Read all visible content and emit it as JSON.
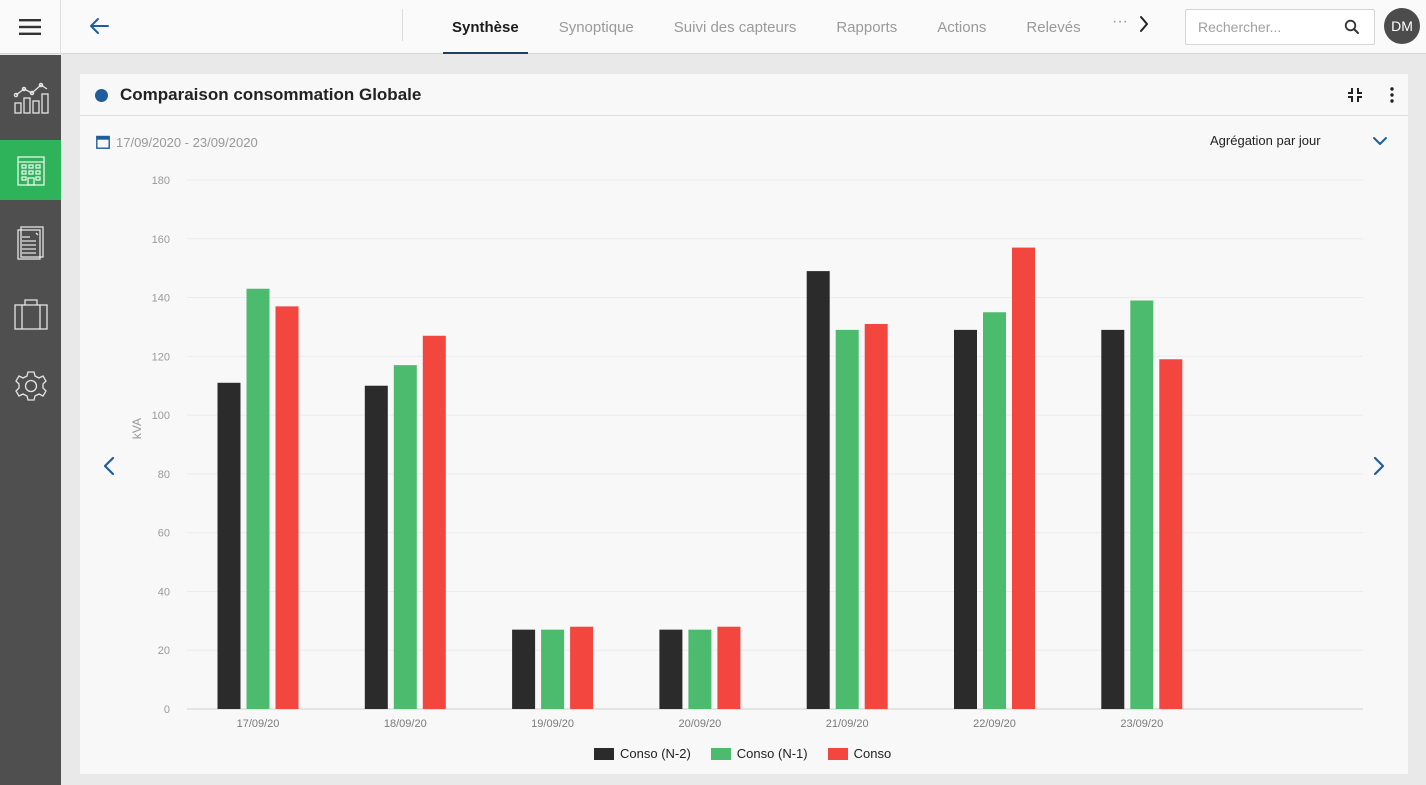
{
  "topbar": {
    "tabs": [
      {
        "label": "Synthèse",
        "active": true
      },
      {
        "label": "Synoptique",
        "active": false
      },
      {
        "label": "Suivi des capteurs",
        "active": false
      },
      {
        "label": "Rapports",
        "active": false
      },
      {
        "label": "Actions",
        "active": false
      },
      {
        "label": "Relevés",
        "active": false
      }
    ],
    "more": "···",
    "search_placeholder": "Rechercher...",
    "avatar_initials": "DM"
  },
  "sidebar": {
    "items": [
      {
        "icon": "chart-icon",
        "active": false
      },
      {
        "icon": "building-icon",
        "active": true
      },
      {
        "icon": "invoice-icon",
        "active": false
      },
      {
        "icon": "briefcase-icon",
        "active": false
      },
      {
        "icon": "gear-icon",
        "active": false
      }
    ]
  },
  "card": {
    "title": "Comparaison consommation Globale",
    "date_range": "17/09/2020 - 23/09/2020",
    "aggregation": "Agrégation par jour"
  },
  "colors": {
    "accent_green": "#2eb25a",
    "title_dot": "#1f5d9c",
    "series_n2": "#2b2b2b",
    "series_n1": "#4cbb6e",
    "series_conso": "#f2463f"
  },
  "chart_data": {
    "type": "bar",
    "ylabel": "kVA",
    "xlabel": "",
    "ylim": [
      0,
      180
    ],
    "yticks": [
      0,
      20,
      40,
      60,
      80,
      100,
      120,
      140,
      160,
      180
    ],
    "categories": [
      "17/09/20",
      "18/09/20",
      "19/09/20",
      "20/09/20",
      "21/09/20",
      "22/09/20",
      "23/09/20"
    ],
    "series": [
      {
        "name": "Conso (N-2)",
        "color": "#2b2b2b",
        "values": [
          111,
          110,
          27,
          27,
          149,
          129,
          129
        ]
      },
      {
        "name": "Conso (N-1)",
        "color": "#4cbb6e",
        "values": [
          143,
          117,
          27,
          27,
          129,
          135,
          139
        ]
      },
      {
        "name": "Conso",
        "color": "#f2463f",
        "values": [
          137,
          127,
          28,
          28,
          131,
          157,
          119
        ]
      }
    ],
    "grid": true,
    "legend": "bottom"
  }
}
